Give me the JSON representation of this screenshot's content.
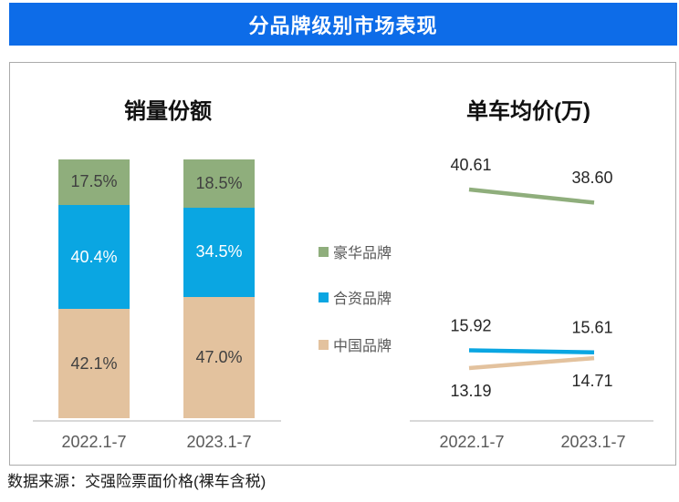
{
  "header": {
    "title": "分品牌级别市场表现"
  },
  "colors": {
    "header_bg": "#0d6ce8",
    "luxury_green": "#8fae7c",
    "joint_blue": "#0aa6e2",
    "china_tan": "#e3c29e",
    "axis_text": "#595959",
    "data_label": "#262626",
    "axis_line": "#d9d9d9"
  },
  "legend": {
    "items": [
      {
        "label": "豪华品牌",
        "color": "#8fae7c"
      },
      {
        "label": "合资品牌",
        "color": "#0aa6e2"
      },
      {
        "label": "中国品牌",
        "color": "#e3c29e"
      }
    ]
  },
  "chart_data": [
    {
      "type": "bar",
      "stacked": true,
      "title": "销量份额",
      "categories": [
        "2022.1-7",
        "2023.1-7"
      ],
      "value_unit": "%",
      "ylim": [
        0,
        100
      ],
      "legend_position": "right-of-chart",
      "series": [
        {
          "name": "豪华品牌",
          "color": "#8fae7c",
          "label_color": "#404040",
          "values": [
            17.5,
            18.5
          ]
        },
        {
          "name": "合资品牌",
          "color": "#0aa6e2",
          "label_color": "#ffffff",
          "values": [
            40.4,
            34.5
          ]
        },
        {
          "name": "中国品牌",
          "color": "#e3c29e",
          "label_color": "#404040",
          "values": [
            42.1,
            47.0
          ]
        }
      ]
    },
    {
      "type": "line",
      "title": "单车均价(万)",
      "categories": [
        "2022.1-7",
        "2023.1-7"
      ],
      "series": [
        {
          "name": "豪华品牌",
          "color": "#8fae7c",
          "values": [
            40.61,
            38.6
          ]
        },
        {
          "name": "合资品牌",
          "color": "#0aa6e2",
          "values": [
            15.92,
            15.61
          ]
        },
        {
          "name": "中国品牌",
          "color": "#e3c29e",
          "values": [
            13.19,
            14.71
          ]
        }
      ]
    }
  ],
  "footer": {
    "source_label": "数据来源：交强险票面价格(裸车含税)"
  }
}
